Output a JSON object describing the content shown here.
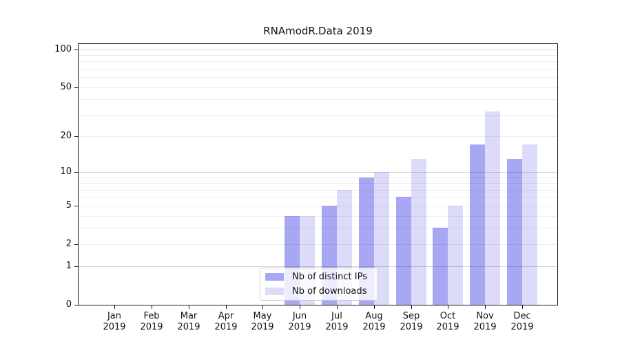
{
  "title": "RNAmodR.Data 2019",
  "chart_data": {
    "type": "bar",
    "title": "RNAmodR.Data 2019",
    "categories": [
      "Jan",
      "Feb",
      "Mar",
      "Apr",
      "May",
      "Jun",
      "Jul",
      "Aug",
      "Sep",
      "Oct",
      "Nov",
      "Dec"
    ],
    "year": "2019",
    "series": [
      {
        "name": "Nb of distinct IPs",
        "color": "#a8a7f4",
        "values": [
          0,
          0,
          0,
          0,
          0,
          4,
          5,
          9,
          6,
          3,
          17,
          13
        ]
      },
      {
        "name": "Nb of downloads",
        "color": "#dcdbf9",
        "values": [
          0,
          0,
          0,
          0,
          0,
          4,
          7,
          10,
          13,
          5,
          32,
          17
        ]
      }
    ],
    "xlabel": "",
    "ylabel": "",
    "y_scale": "log1p",
    "y_ticks": [
      0,
      1,
      2,
      5,
      10,
      20,
      50,
      100
    ],
    "y_max": 110.2,
    "grid_major": [
      1,
      10,
      100
    ],
    "grid_minor": [
      2,
      3,
      4,
      5,
      6,
      7,
      8,
      9,
      20,
      30,
      40,
      50,
      60,
      70,
      80,
      90
    ],
    "grid": true,
    "legend_position": "bottom-center",
    "background_color": "#ffffff",
    "spine_color": "#151515"
  }
}
